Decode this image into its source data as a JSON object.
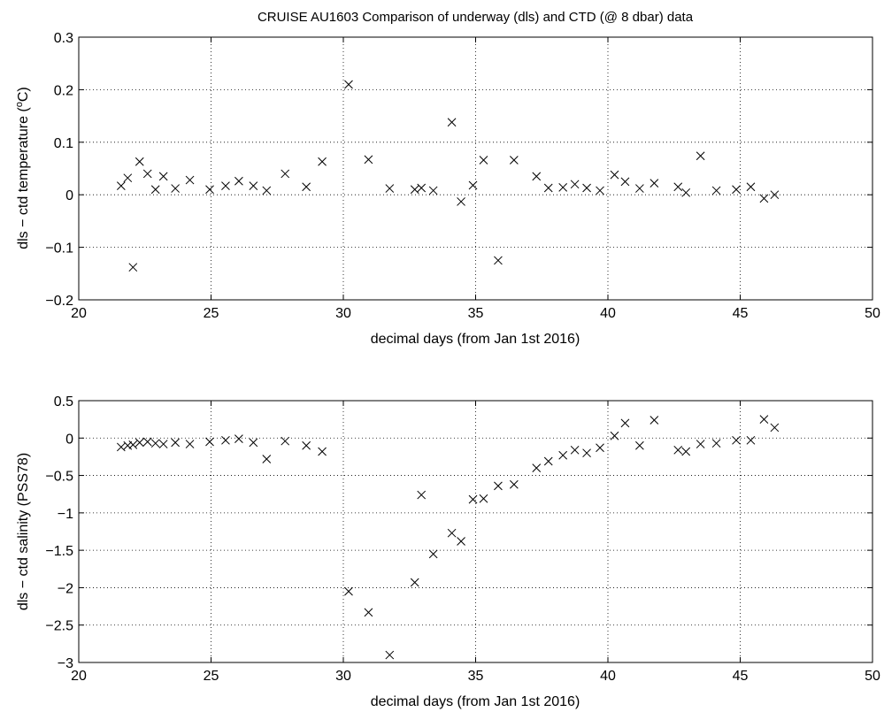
{
  "figure": {
    "title": "CRUISE AU1603   Comparison of underway (dls) and CTD (@ 8 dbar) data"
  },
  "chart_data": [
    {
      "type": "scatter",
      "marker": "x",
      "xlabel": "decimal days (from Jan 1st 2016)",
      "ylabel_main": "dls − ctd temperature (",
      "ylabel_sup": "o",
      "ylabel_tail": "C)",
      "xlim": [
        20,
        50
      ],
      "ylim": [
        -0.2,
        0.3
      ],
      "grid": true,
      "xticks": [
        20,
        25,
        30,
        35,
        40,
        45,
        50
      ],
      "xtick_labels": [
        "20",
        "25",
        "30",
        "35",
        "40",
        "45",
        "50"
      ],
      "yticks": [
        -0.2,
        -0.1,
        0,
        0.1,
        0.2,
        0.3
      ],
      "ytick_labels": [
        "−0.2",
        "−0.1",
        "0",
        "0.1",
        "0.2",
        "0.3"
      ],
      "points": [
        [
          21.6,
          0.017
        ],
        [
          21.85,
          0.032
        ],
        [
          22.05,
          -0.138
        ],
        [
          22.3,
          0.063
        ],
        [
          22.6,
          0.04
        ],
        [
          22.9,
          0.01
        ],
        [
          23.2,
          0.035
        ],
        [
          23.65,
          0.012
        ],
        [
          24.2,
          0.028
        ],
        [
          24.95,
          0.01
        ],
        [
          25.55,
          0.017
        ],
        [
          26.05,
          0.026
        ],
        [
          26.6,
          0.017
        ],
        [
          27.1,
          0.008
        ],
        [
          27.8,
          0.04
        ],
        [
          28.6,
          0.015
        ],
        [
          29.2,
          0.063
        ],
        [
          30.2,
          0.21
        ],
        [
          30.95,
          0.067
        ],
        [
          31.75,
          0.012
        ],
        [
          32.7,
          0.01
        ],
        [
          32.95,
          0.013
        ],
        [
          33.4,
          0.008
        ],
        [
          34.1,
          0.138
        ],
        [
          34.45,
          -0.013
        ],
        [
          34.9,
          0.018
        ],
        [
          35.3,
          0.066
        ],
        [
          35.85,
          -0.125
        ],
        [
          36.45,
          0.066
        ],
        [
          37.3,
          0.035
        ],
        [
          37.75,
          0.013
        ],
        [
          38.3,
          0.014
        ],
        [
          38.75,
          0.02
        ],
        [
          39.2,
          0.013
        ],
        [
          39.7,
          0.008
        ],
        [
          40.25,
          0.038
        ],
        [
          40.65,
          0.025
        ],
        [
          41.2,
          0.012
        ],
        [
          41.75,
          0.022
        ],
        [
          42.65,
          0.015
        ],
        [
          42.95,
          0.004
        ],
        [
          43.5,
          0.074
        ],
        [
          44.1,
          0.008
        ],
        [
          44.85,
          0.01
        ],
        [
          45.4,
          0.015
        ],
        [
          45.9,
          -0.007
        ],
        [
          46.3,
          0.0
        ]
      ]
    },
    {
      "type": "scatter",
      "marker": "x",
      "xlabel": "decimal days (from Jan 1st 2016)",
      "ylabel_main": "dls − ctd salinity (PSS78)",
      "ylabel_sup": "",
      "ylabel_tail": "",
      "xlim": [
        20,
        50
      ],
      "ylim": [
        -3,
        0.5
      ],
      "grid": true,
      "xticks": [
        20,
        25,
        30,
        35,
        40,
        45,
        50
      ],
      "xtick_labels": [
        "20",
        "25",
        "30",
        "35",
        "40",
        "45",
        "50"
      ],
      "yticks": [
        -3,
        -2.5,
        -2,
        -1.5,
        -1,
        -0.5,
        0,
        0.5
      ],
      "ytick_labels": [
        "−3",
        "−2.5",
        "−2",
        "−1.5",
        "−1",
        "−0.5",
        "0",
        "0.5"
      ],
      "points": [
        [
          21.6,
          -0.12
        ],
        [
          21.85,
          -0.1
        ],
        [
          22.05,
          -0.09
        ],
        [
          22.3,
          -0.06
        ],
        [
          22.6,
          -0.05
        ],
        [
          22.9,
          -0.07
        ],
        [
          23.2,
          -0.08
        ],
        [
          23.65,
          -0.06
        ],
        [
          24.2,
          -0.08
        ],
        [
          24.95,
          -0.05
        ],
        [
          25.55,
          -0.03
        ],
        [
          26.05,
          -0.01
        ],
        [
          26.6,
          -0.06
        ],
        [
          27.1,
          -0.28
        ],
        [
          27.8,
          -0.04
        ],
        [
          28.6,
          -0.1
        ],
        [
          29.2,
          -0.18
        ],
        [
          30.2,
          -2.05
        ],
        [
          30.95,
          -2.33
        ],
        [
          31.75,
          -2.9
        ],
        [
          32.7,
          -1.93
        ],
        [
          32.95,
          -0.76
        ],
        [
          33.4,
          -1.55
        ],
        [
          34.1,
          -1.27
        ],
        [
          34.45,
          -1.38
        ],
        [
          34.9,
          -0.82
        ],
        [
          35.3,
          -0.81
        ],
        [
          35.85,
          -0.64
        ],
        [
          36.45,
          -0.62
        ],
        [
          37.3,
          -0.4
        ],
        [
          37.75,
          -0.31
        ],
        [
          38.3,
          -0.23
        ],
        [
          38.75,
          -0.16
        ],
        [
          39.2,
          -0.2
        ],
        [
          39.7,
          -0.13
        ],
        [
          40.25,
          0.03
        ],
        [
          40.65,
          0.2
        ],
        [
          41.2,
          -0.1
        ],
        [
          41.75,
          0.24
        ],
        [
          42.65,
          -0.16
        ],
        [
          42.95,
          -0.18
        ],
        [
          43.5,
          -0.08
        ],
        [
          44.1,
          -0.07
        ],
        [
          44.85,
          -0.03
        ],
        [
          45.4,
          -0.03
        ],
        [
          45.9,
          0.25
        ],
        [
          46.3,
          0.14
        ]
      ]
    }
  ]
}
